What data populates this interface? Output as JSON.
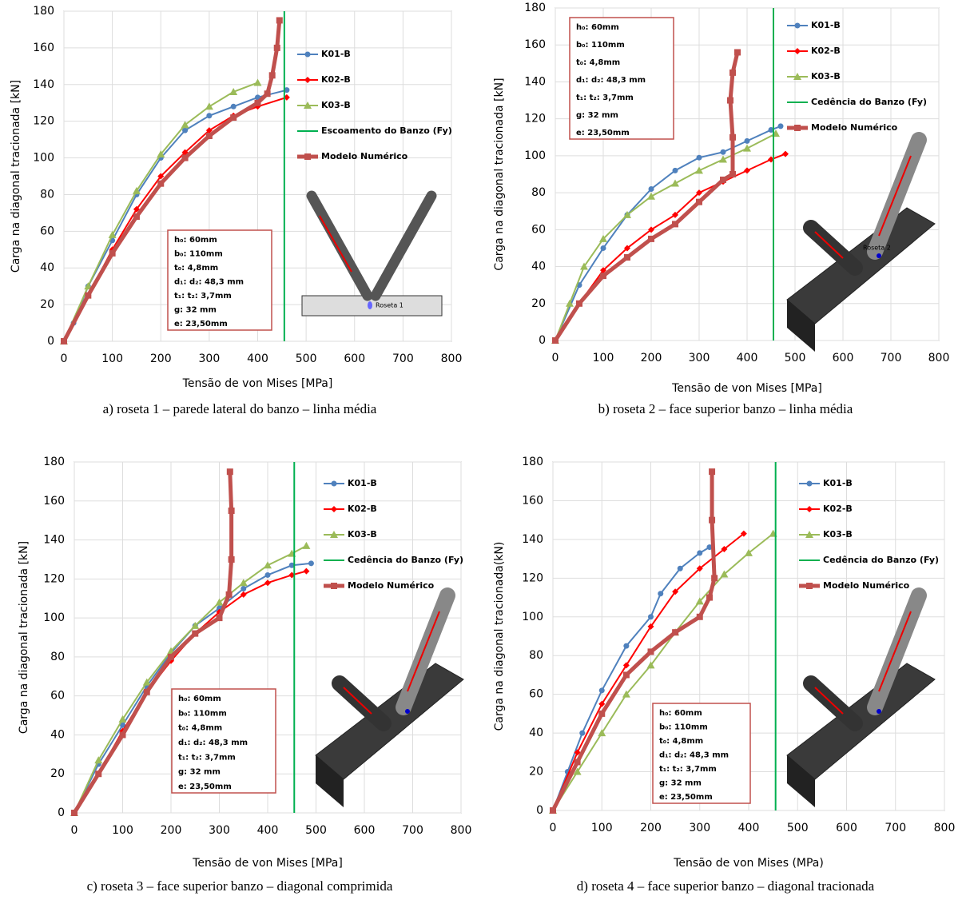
{
  "chart_data": [
    {
      "type": "line",
      "x_label": "Tensão de von Mises [MPa]",
      "y_label": "Carga na diagonal tracionada [kN]",
      "caption": "a) roseta 1 – parede lateral do banzo – linha média",
      "xlim": [
        0,
        800
      ],
      "ylim": [
        0,
        180
      ],
      "xticks": [
        0,
        100,
        200,
        300,
        400,
        500,
        600,
        700,
        800
      ],
      "yticks": [
        0,
        20,
        40,
        60,
        80,
        100,
        120,
        140,
        160,
        180
      ],
      "grid": true,
      "legend": "upper right",
      "series": [
        {
          "name": "K01-B",
          "color": "#4f81bd",
          "marker": "circle",
          "x": [
            0,
            20,
            50,
            100,
            150,
            200,
            250,
            300,
            350,
            400,
            460
          ],
          "values": [
            0,
            10,
            30,
            55,
            80,
            100,
            115,
            123,
            128,
            133,
            137
          ]
        },
        {
          "name": "K02-B",
          "color": "#ff0000",
          "marker": "diamond",
          "x": [
            0,
            50,
            100,
            150,
            200,
            250,
            300,
            350,
            400,
            460
          ],
          "values": [
            0,
            25,
            50,
            72,
            90,
            103,
            115,
            123,
            128,
            133
          ]
        },
        {
          "name": "K03-B",
          "color": "#9bbb59",
          "marker": "triangle",
          "x": [
            0,
            50,
            100,
            150,
            200,
            250,
            300,
            350,
            400
          ],
          "values": [
            0,
            30,
            58,
            82,
            102,
            118,
            128,
            136,
            141
          ]
        },
        {
          "name": "Escoamento do Banzo (Fy)",
          "color": "#00b050",
          "marker": "none",
          "x": [
            455,
            455
          ],
          "values": [
            0,
            180
          ]
        },
        {
          "name": "Modelo Numérico",
          "color": "#c0504d",
          "marker": "square",
          "x": [
            0,
            50,
            100,
            150,
            200,
            250,
            300,
            350,
            400,
            420,
            430,
            440,
            445
          ],
          "values": [
            0,
            25,
            48,
            68,
            86,
            100,
            112,
            122,
            130,
            135,
            145,
            160,
            175
          ]
        }
      ],
      "notes": [
        "h₀: 60mm",
        "b₀: 110mm",
        "t₀: 4,8mm",
        "d₁: d₂: 48,3 mm",
        "t₁: t₂: 3,7mm",
        "g: 32 mm",
        "e: 23,50mm"
      ],
      "inset_label": "Roseta 1"
    },
    {
      "type": "line",
      "x_label": "Tensão de von Mises [MPa]",
      "y_label": "Carga na diagonal tracionada [kN]",
      "caption": "b) roseta 2 – face superior banzo – linha média",
      "xlim": [
        0,
        800
      ],
      "ylim": [
        0,
        180
      ],
      "xticks": [
        0,
        100,
        200,
        300,
        400,
        500,
        600,
        700,
        800
      ],
      "yticks": [
        0,
        20,
        40,
        60,
        80,
        100,
        120,
        140,
        160,
        180
      ],
      "grid": true,
      "legend": "upper right",
      "series": [
        {
          "name": "K01-B",
          "color": "#4f81bd",
          "marker": "circle",
          "x": [
            0,
            50,
            100,
            150,
            200,
            250,
            300,
            350,
            400,
            450,
            470
          ],
          "values": [
            0,
            30,
            50,
            68,
            82,
            92,
            99,
            102,
            108,
            114,
            116
          ]
        },
        {
          "name": "K02-B",
          "color": "#ff0000",
          "marker": "diamond",
          "x": [
            0,
            50,
            100,
            150,
            200,
            250,
            300,
            350,
            400,
            450,
            480
          ],
          "values": [
            0,
            20,
            38,
            50,
            60,
            68,
            80,
            86,
            92,
            98,
            101
          ]
        },
        {
          "name": "K03-B",
          "color": "#9bbb59",
          "marker": "triangle",
          "x": [
            0,
            30,
            60,
            100,
            150,
            200,
            250,
            300,
            350,
            400,
            460
          ],
          "values": [
            0,
            20,
            40,
            55,
            68,
            78,
            85,
            92,
            98,
            104,
            112
          ]
        },
        {
          "name": "Cedência do Banzo (Fy)",
          "color": "#00b050",
          "marker": "none",
          "x": [
            455,
            455
          ],
          "values": [
            0,
            180
          ]
        },
        {
          "name": "Modelo Numérico",
          "color": "#c0504d",
          "marker": "square",
          "x": [
            0,
            50,
            100,
            150,
            200,
            250,
            300,
            350,
            370,
            370,
            365,
            370,
            380
          ],
          "values": [
            0,
            20,
            35,
            45,
            55,
            63,
            75,
            87,
            90,
            110,
            130,
            145,
            156
          ]
        }
      ],
      "notes": [
        "h₀: 60mm",
        "b₀: 110mm",
        "t₀: 4,8mm",
        "d₁: d₂: 48,3 mm",
        "t₁: t₂: 3,7mm",
        "g: 32 mm",
        "e: 23,50mm"
      ],
      "inset_label": "Roseta 2"
    },
    {
      "type": "line",
      "x_label": "Tensão de von Mises [MPa]",
      "y_label": "Carga na diagonal tracionada [kN]",
      "caption": "c) roseta 3 – face superior banzo – diagonal comprimida",
      "xlim": [
        0,
        800
      ],
      "ylim": [
        0,
        180
      ],
      "xticks": [
        0,
        100,
        200,
        300,
        400,
        500,
        600,
        700,
        800
      ],
      "yticks": [
        0,
        20,
        40,
        60,
        80,
        100,
        120,
        140,
        160,
        180
      ],
      "grid": true,
      "legend": "upper right",
      "series": [
        {
          "name": "K01-B",
          "color": "#4f81bd",
          "marker": "circle",
          "x": [
            0,
            50,
            100,
            150,
            200,
            250,
            300,
            350,
            400,
            450,
            490
          ],
          "values": [
            0,
            25,
            45,
            65,
            82,
            96,
            105,
            115,
            122,
            127,
            128
          ]
        },
        {
          "name": "K02-B",
          "color": "#ff0000",
          "marker": "diamond",
          "x": [
            0,
            50,
            100,
            150,
            200,
            250,
            300,
            350,
            400,
            450,
            480
          ],
          "values": [
            0,
            20,
            42,
            62,
            78,
            92,
            103,
            112,
            118,
            122,
            124
          ]
        },
        {
          "name": "K03-B",
          "color": "#9bbb59",
          "marker": "triangle",
          "x": [
            0,
            50,
            100,
            150,
            200,
            250,
            300,
            350,
            400,
            450,
            480
          ],
          "values": [
            0,
            27,
            48,
            67,
            83,
            96,
            108,
            118,
            127,
            133,
            137
          ]
        },
        {
          "name": "Cedência do Banzo (Fy)",
          "color": "#00b050",
          "marker": "none",
          "x": [
            455,
            455
          ],
          "values": [
            0,
            180
          ]
        },
        {
          "name": "Modelo Numérico",
          "color": "#c0504d",
          "marker": "square",
          "x": [
            0,
            50,
            100,
            150,
            200,
            250,
            300,
            320,
            325,
            325,
            322
          ],
          "values": [
            0,
            20,
            40,
            62,
            80,
            92,
            100,
            112,
            130,
            155,
            175
          ]
        }
      ],
      "notes": [
        "h₀: 60mm",
        "b₀: 110mm",
        "t₀: 4,8mm",
        "d₁: d₂: 48,3 mm",
        "t₁: t₂: 3,7mm",
        "g: 32 mm",
        "e: 23,50mm"
      ]
    },
    {
      "type": "line",
      "x_label": "Tensão de von Mises (MPa)",
      "y_label": "Carga  na diagonal tracionada(kN)",
      "caption": "d) roseta 4 – face superior banzo – diagonal tracionada",
      "xlim": [
        0,
        800
      ],
      "ylim": [
        0,
        180
      ],
      "xticks": [
        0,
        100,
        200,
        300,
        400,
        500,
        600,
        700,
        800
      ],
      "yticks": [
        0,
        20,
        40,
        60,
        80,
        100,
        120,
        140,
        160,
        180
      ],
      "grid": true,
      "legend": "upper right",
      "series": [
        {
          "name": "K01-B",
          "color": "#4f81bd",
          "marker": "circle",
          "x": [
            0,
            30,
            60,
            100,
            150,
            200,
            220,
            260,
            300,
            320
          ],
          "values": [
            0,
            20,
            40,
            62,
            85,
            100,
            112,
            125,
            133,
            136
          ]
        },
        {
          "name": "K02-B",
          "color": "#ff0000",
          "marker": "diamond",
          "x": [
            0,
            50,
            100,
            150,
            200,
            250,
            300,
            350,
            390
          ],
          "values": [
            0,
            30,
            55,
            75,
            95,
            113,
            125,
            135,
            143
          ]
        },
        {
          "name": "K03-B",
          "color": "#9bbb59",
          "marker": "triangle",
          "x": [
            0,
            50,
            100,
            150,
            200,
            250,
            300,
            350,
            400,
            450
          ],
          "values": [
            0,
            20,
            40,
            60,
            75,
            92,
            108,
            122,
            133,
            143
          ]
        },
        {
          "name": "Cedência do Banzo (Fy)",
          "color": "#00b050",
          "marker": "none",
          "x": [
            455,
            455
          ],
          "values": [
            0,
            180
          ]
        },
        {
          "name": "Modelo Numérico",
          "color": "#c0504d",
          "marker": "square",
          "x": [
            0,
            50,
            100,
            150,
            200,
            250,
            300,
            320,
            330,
            325,
            325
          ],
          "values": [
            0,
            25,
            50,
            70,
            82,
            92,
            100,
            110,
            120,
            150,
            175
          ]
        }
      ],
      "notes": [
        "h₀: 60mm",
        "b₀: 110mm",
        "t₀: 4,8mm",
        "d₁: d₂: 48,3 mm",
        "t₁: t₂: 3,7mm",
        "g: 32 mm",
        "e: 23,50mm"
      ]
    }
  ]
}
